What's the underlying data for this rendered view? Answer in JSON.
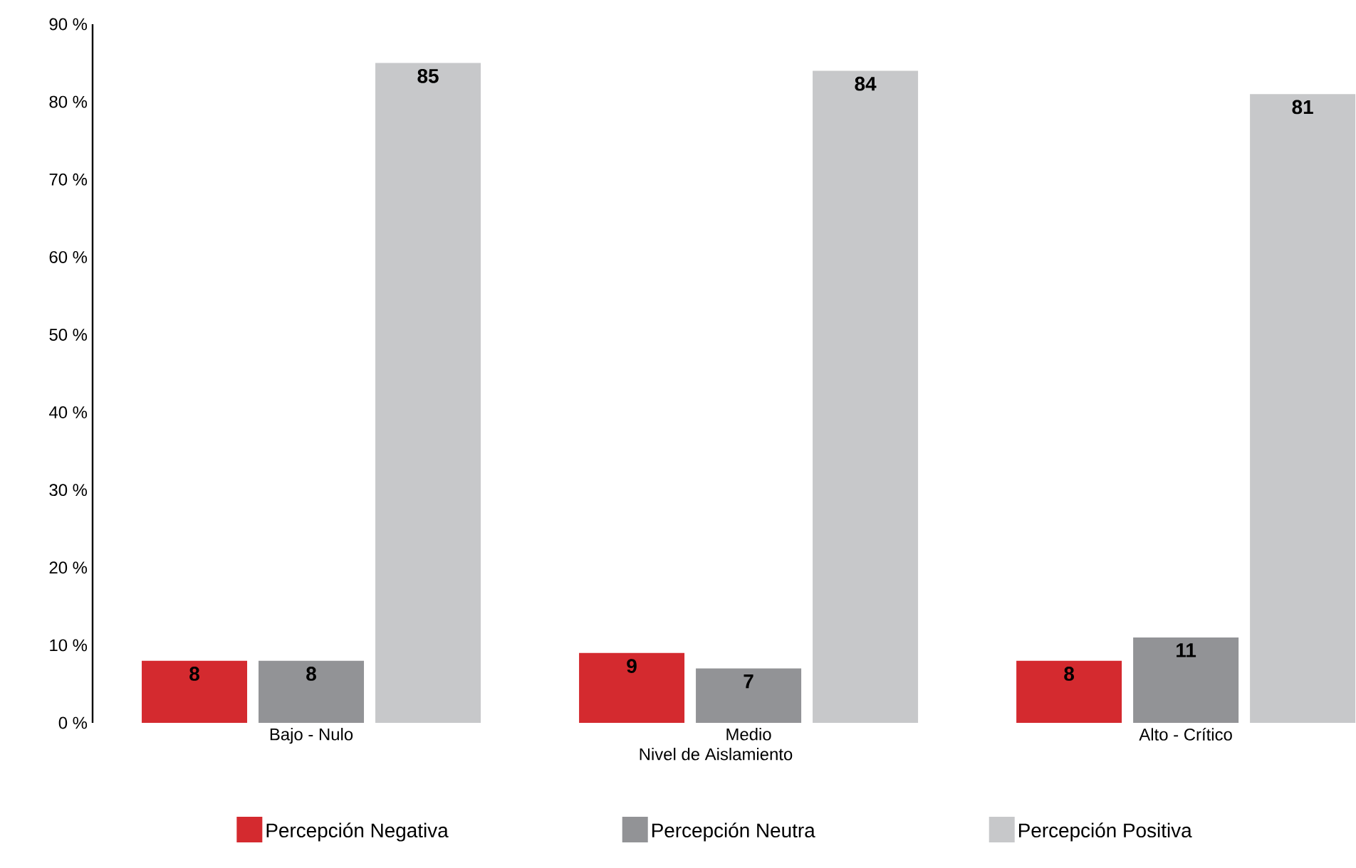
{
  "chart_data": {
    "type": "bar",
    "xlabel": "Nivel de Aislamiento",
    "categories": [
      "Bajo - Nulo",
      "Medio",
      "Alto - Crítico"
    ],
    "series": [
      {
        "name": "Percepción Negativa",
        "color": "#d42a2f",
        "values": [
          8,
          9,
          8
        ]
      },
      {
        "name": "Percepción Neutra",
        "color": "#929396",
        "values": [
          8,
          7,
          11
        ]
      },
      {
        "name": "Percepción Positiva",
        "color": "#c7c8ca",
        "values": [
          85,
          84,
          81
        ]
      }
    ],
    "ylim": [
      0,
      90
    ],
    "yticks": [
      {
        "value": 0,
        "label": "0 %"
      },
      {
        "value": 10,
        "label": "10 %"
      },
      {
        "value": 20,
        "label": "20 %"
      },
      {
        "value": 30,
        "label": "30 %"
      },
      {
        "value": 40,
        "label": "40 %"
      },
      {
        "value": 50,
        "label": "50 %"
      },
      {
        "value": 60,
        "label": "60 %"
      },
      {
        "value": 70,
        "label": "70 %"
      },
      {
        "value": 80,
        "label": "80 %"
      },
      {
        "value": 90,
        "label": "90 %"
      }
    ],
    "data_labels": true,
    "grid": false,
    "legend": "bottom"
  }
}
